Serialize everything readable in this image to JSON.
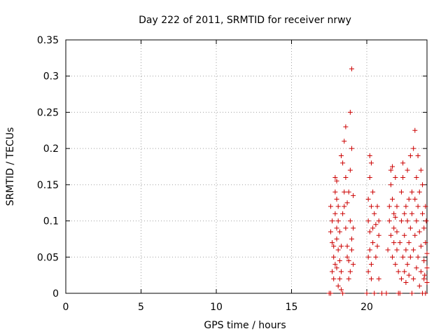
{
  "chart_data": {
    "type": "scatter",
    "title": "Day 222 of 2011, SRMTID for receiver nrwy",
    "xlabel": "GPS time / hours",
    "ylabel": "SRMTID / TECUs",
    "xlim": [
      0,
      24
    ],
    "ylim": [
      0,
      0.35
    ],
    "grid": true,
    "x_ticks": [
      0,
      5,
      10,
      15,
      20
    ],
    "x_tick_labels": [
      "0",
      "5",
      "10",
      "15",
      "20"
    ],
    "y_ticks": [
      0,
      0.05,
      0.1,
      0.15,
      0.2,
      0.25,
      0.3,
      0.35
    ],
    "y_tick_labels": [
      "0",
      "0.05",
      "0.1",
      "0.15",
      "0.2",
      "0.25",
      "0.3",
      "0.35"
    ],
    "series": [
      {
        "name": "SRMTID",
        "color": "#cc0000",
        "marker": "plus",
        "points": [
          [
            17.5,
            0.0
          ],
          [
            17.6,
            0.0
          ],
          [
            17.6,
            0.12
          ],
          [
            17.6,
            0.085
          ],
          [
            17.7,
            0.07
          ],
          [
            17.7,
            0.03
          ],
          [
            17.7,
            0.1
          ],
          [
            17.8,
            0.05
          ],
          [
            17.8,
            0.065
          ],
          [
            17.8,
            0.02
          ],
          [
            17.9,
            0.16
          ],
          [
            17.9,
            0.14
          ],
          [
            17.9,
            0.11
          ],
          [
            17.9,
            0.04
          ],
          [
            18.0,
            0.09
          ],
          [
            18.0,
            0.13
          ],
          [
            18.0,
            0.075
          ],
          [
            18.0,
            0.035
          ],
          [
            18.0,
            0.155
          ],
          [
            18.1,
            0.1
          ],
          [
            18.1,
            0.06
          ],
          [
            18.1,
            0.01
          ],
          [
            18.1,
            0.12
          ],
          [
            18.2,
            0.085
          ],
          [
            18.2,
            0.02
          ],
          [
            18.2,
            0.045
          ],
          [
            18.3,
            0.03
          ],
          [
            18.3,
            0.065
          ],
          [
            18.3,
            0.19
          ],
          [
            18.3,
            0.005
          ],
          [
            18.4,
            0.0
          ],
          [
            18.4,
            0.11
          ],
          [
            18.4,
            0.18
          ],
          [
            18.5,
            0.21
          ],
          [
            18.5,
            0.14
          ],
          [
            18.5,
            0.12
          ],
          [
            18.6,
            0.23
          ],
          [
            18.6,
            0.16
          ],
          [
            18.6,
            0.09
          ],
          [
            18.7,
            0.065
          ],
          [
            18.7,
            0.05
          ],
          [
            18.7,
            0.125
          ],
          [
            18.8,
            0.14
          ],
          [
            18.8,
            0.045
          ],
          [
            18.8,
            0.02
          ],
          [
            18.9,
            0.17
          ],
          [
            18.9,
            0.25
          ],
          [
            18.9,
            0.1
          ],
          [
            18.9,
            0.03
          ],
          [
            19.0,
            0.31
          ],
          [
            19.0,
            0.2
          ],
          [
            19.0,
            0.06
          ],
          [
            19.0,
            0.075
          ],
          [
            19.1,
            0.135
          ],
          [
            19.1,
            0.09
          ],
          [
            19.1,
            0.04
          ],
          [
            20.0,
            0.0
          ],
          [
            20.1,
            0.05
          ],
          [
            20.1,
            0.1
          ],
          [
            20.1,
            0.13
          ],
          [
            20.1,
            0.03
          ],
          [
            20.2,
            0.16
          ],
          [
            20.2,
            0.19
          ],
          [
            20.2,
            0.085
          ],
          [
            20.2,
            0.06
          ],
          [
            20.3,
            0.18
          ],
          [
            20.3,
            0.12
          ],
          [
            20.3,
            0.04
          ],
          [
            20.3,
            0.02
          ],
          [
            20.4,
            0.09
          ],
          [
            20.4,
            0.07
          ],
          [
            20.4,
            0.14
          ],
          [
            20.5,
            0.0
          ],
          [
            20.5,
            0.11
          ],
          [
            20.6,
            0.05
          ],
          [
            20.6,
            0.095
          ],
          [
            20.7,
            0.12
          ],
          [
            20.7,
            0.065
          ],
          [
            20.8,
            0.02
          ],
          [
            20.8,
            0.1
          ],
          [
            20.8,
            0.08
          ],
          [
            21.0,
            0.0
          ],
          [
            21.3,
            0.0
          ],
          [
            21.4,
            0.06
          ],
          [
            21.5,
            0.1
          ],
          [
            21.5,
            0.12
          ],
          [
            21.6,
            0.15
          ],
          [
            21.6,
            0.17
          ],
          [
            21.6,
            0.08
          ],
          [
            21.7,
            0.05
          ],
          [
            21.7,
            0.13
          ],
          [
            21.7,
            0.175
          ],
          [
            21.8,
            0.07
          ],
          [
            21.8,
            0.11
          ],
          [
            21.8,
            0.09
          ],
          [
            21.9,
            0.16
          ],
          [
            21.9,
            0.04
          ],
          [
            21.9,
            0.105
          ],
          [
            22.0,
            0.06
          ],
          [
            22.0,
            0.12
          ],
          [
            22.0,
            0.085
          ],
          [
            22.1,
            0.0
          ],
          [
            22.1,
            0.03
          ],
          [
            22.2,
            0.0
          ],
          [
            22.2,
            0.07
          ],
          [
            22.3,
            0.02
          ],
          [
            22.3,
            0.14
          ],
          [
            22.3,
            0.1
          ],
          [
            22.4,
            0.16
          ],
          [
            22.4,
            0.05
          ],
          [
            22.4,
            0.18
          ],
          [
            22.5,
            0.11
          ],
          [
            22.5,
            0.08
          ],
          [
            22.5,
            0.03
          ],
          [
            22.6,
            0.06
          ],
          [
            22.6,
            0.12
          ],
          [
            22.6,
            0.015
          ],
          [
            22.7,
            0.1
          ],
          [
            22.7,
            0.04
          ],
          [
            22.7,
            0.17
          ],
          [
            22.8,
            0.07
          ],
          [
            22.8,
            0.13
          ],
          [
            22.8,
            0.025
          ],
          [
            22.9,
            0.19
          ],
          [
            22.9,
            0.09
          ],
          [
            22.9,
            0.05
          ],
          [
            23.0,
            0.0
          ],
          [
            23.0,
            0.14
          ],
          [
            23.0,
            0.11
          ],
          [
            23.1,
            0.06
          ],
          [
            23.1,
            0.2
          ],
          [
            23.1,
            0.02
          ],
          [
            23.2,
            0.225
          ],
          [
            23.2,
            0.13
          ],
          [
            23.2,
            0.08
          ],
          [
            23.3,
            0.035
          ],
          [
            23.3,
            0.16
          ],
          [
            23.3,
            0.1
          ],
          [
            23.4,
            0.19
          ],
          [
            23.4,
            0.05
          ],
          [
            23.4,
            0.12
          ],
          [
            23.5,
            0.01
          ],
          [
            23.5,
            0.085
          ],
          [
            23.5,
            0.14
          ],
          [
            23.6,
            0.17
          ],
          [
            23.6,
            0.03
          ],
          [
            23.6,
            0.065
          ],
          [
            23.7,
            0.11
          ],
          [
            23.7,
            0.0
          ],
          [
            23.7,
            0.15
          ],
          [
            23.8,
            0.045
          ],
          [
            23.8,
            0.09
          ],
          [
            23.8,
            0.02
          ],
          [
            23.9,
            0.07
          ],
          [
            23.9,
            0.12
          ],
          [
            23.9,
            0.0
          ],
          [
            24.0,
            0.035
          ],
          [
            24.0,
            0.055
          ],
          [
            24.0,
            0.015
          ],
          [
            23.95,
            0.1
          ],
          [
            23.85,
            0.025
          ]
        ]
      }
    ]
  }
}
